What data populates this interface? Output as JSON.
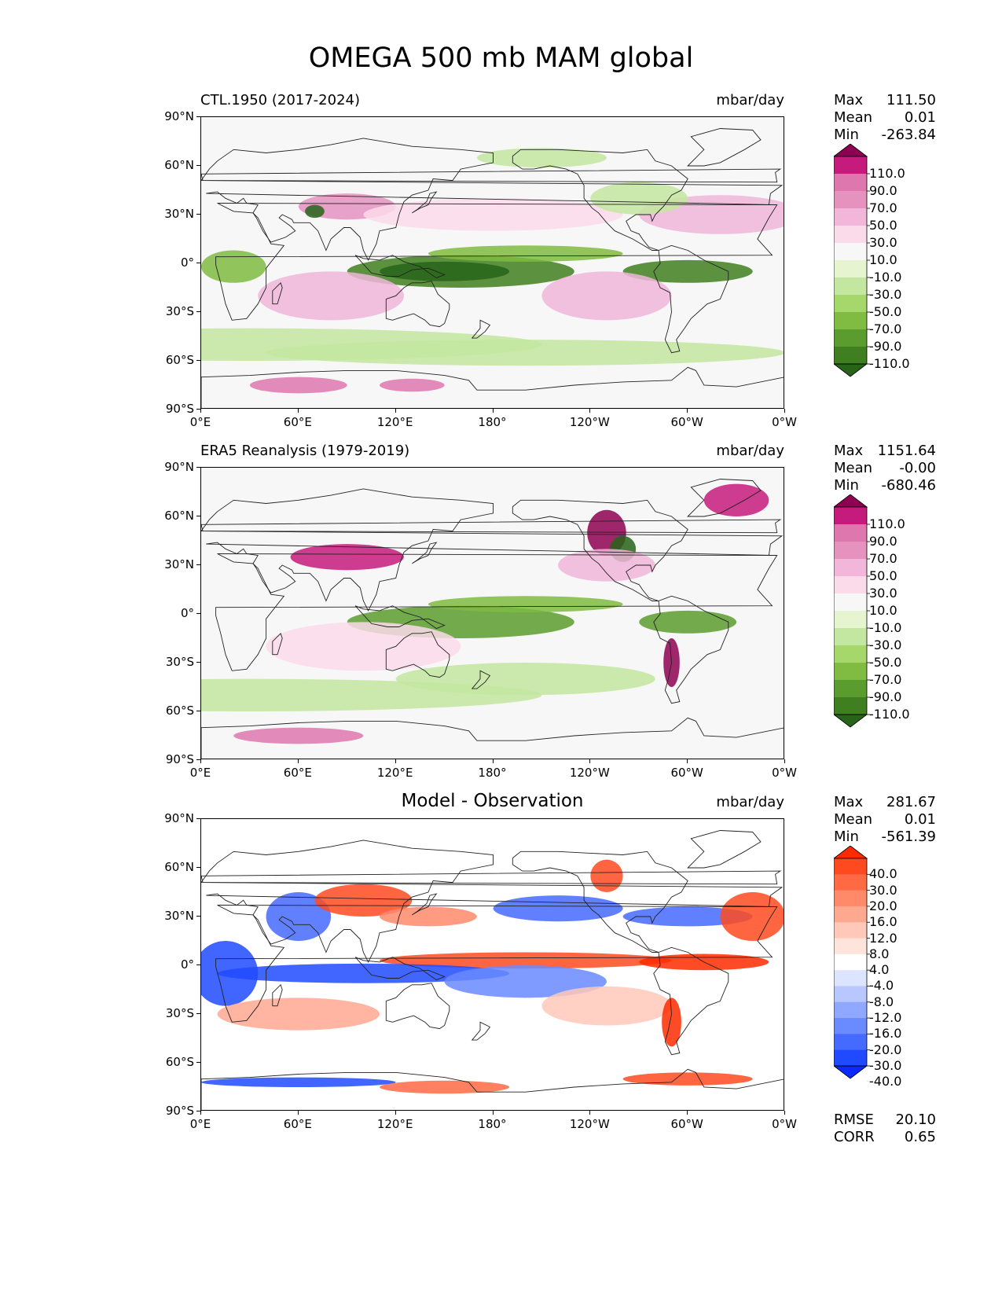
{
  "title": "OMEGA 500 mb MAM global",
  "latitude_ticks": [
    "90°N",
    "60°N",
    "30°N",
    "0°",
    "30°S",
    "60°S",
    "90°S"
  ],
  "longitude_ticks": [
    "0°E",
    "60°E",
    "120°E",
    "180°",
    "120°W",
    "60°W",
    "0°W"
  ],
  "panels": [
    {
      "left_title": "CTL.1950 (2017-2024)",
      "center_title": "",
      "units": "mbar/day",
      "stats": [
        {
          "label": "Max",
          "value": "111.50"
        },
        {
          "label": "Mean",
          "value": "0.01"
        },
        {
          "label": "Min",
          "value": "-263.84"
        }
      ],
      "colorbar": {
        "labels": [
          "110.0",
          "90.0",
          "70.0",
          "50.0",
          "30.0",
          "10.0",
          "-10.0",
          "-30.0",
          "-50.0",
          "-70.0",
          "-90.0",
          "-110.0"
        ],
        "colors": [
          "#8e0152",
          "#c51b7d",
          "#de77ae",
          "#e592bf",
          "#f1b6da",
          "#fbdaea",
          "#f7f7f7",
          "#e6f5d0",
          "#c3e6a0",
          "#a5d76a",
          "#7fbc41",
          "#5a9c2e",
          "#3f7f1f",
          "#276419"
        ]
      },
      "style": "omega"
    },
    {
      "left_title": "ERA5 Reanalysis (1979-2019)",
      "center_title": "",
      "units": "mbar/day",
      "stats": [
        {
          "label": "Max",
          "value": "1151.64"
        },
        {
          "label": "Mean",
          "value": "-0.00"
        },
        {
          "label": "Min",
          "value": "-680.46"
        }
      ],
      "colorbar": {
        "labels": [
          "110.0",
          "90.0",
          "70.0",
          "50.0",
          "30.0",
          "10.0",
          "-10.0",
          "-30.0",
          "-50.0",
          "-70.0",
          "-90.0",
          "-110.0"
        ],
        "colors": [
          "#8e0152",
          "#c51b7d",
          "#de77ae",
          "#e592bf",
          "#f1b6da",
          "#fbdaea",
          "#f7f7f7",
          "#e6f5d0",
          "#c3e6a0",
          "#a5d76a",
          "#7fbc41",
          "#5a9c2e",
          "#3f7f1f",
          "#276419"
        ]
      },
      "style": "omega"
    },
    {
      "left_title": "",
      "center_title": "Model - Observation",
      "units": "mbar/day",
      "stats": [
        {
          "label": "Max",
          "value": "281.67"
        },
        {
          "label": "Mean",
          "value": "0.01"
        },
        {
          "label": "Min",
          "value": "-561.39"
        }
      ],
      "colorbar": {
        "labels": [
          "40.0",
          "30.0",
          "20.0",
          "16.0",
          "12.0",
          "8.0",
          "4.0",
          "-4.0",
          "-8.0",
          "-12.0",
          "-16.0",
          "-20.0",
          "-30.0",
          "-40.0"
        ],
        "colors": [
          "#ff2a00",
          "#ff4a20",
          "#ff6a45",
          "#ff8a6a",
          "#ffa890",
          "#ffc8b8",
          "#ffe4dc",
          "#ffffff",
          "#dce4ff",
          "#b8c8ff",
          "#90a8ff",
          "#6a8aff",
          "#456aff",
          "#204aff",
          "#0a28ff"
        ]
      },
      "metrics": [
        {
          "label": "RMSE",
          "value": "20.10"
        },
        {
          "label": "CORR",
          "value": "0.65"
        }
      ],
      "style": "diff"
    }
  ]
}
